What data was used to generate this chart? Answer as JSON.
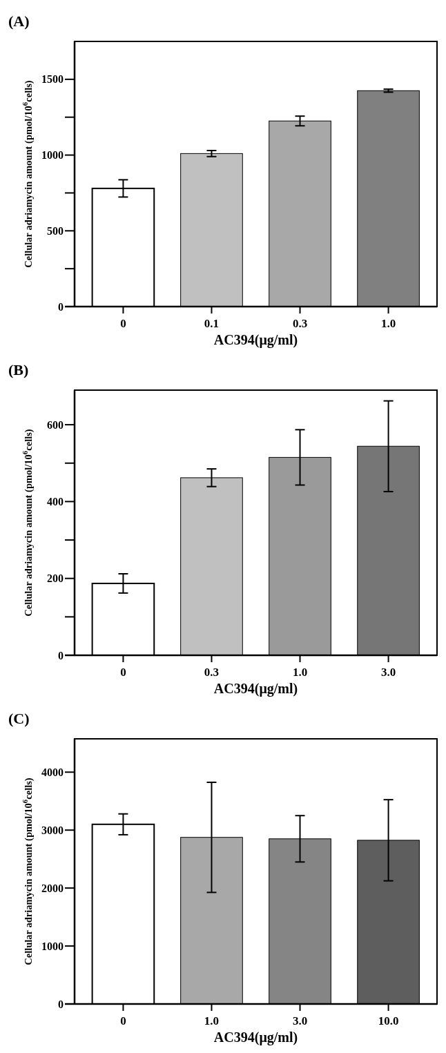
{
  "chart_data": [
    {
      "type": "bar",
      "title": "(A)",
      "xlabel": "AC394(μg/ml)",
      "ylabel": "Cellular adriamycin amount (pmol/10$^{6}$cells)",
      "categories": [
        "0",
        "0.1",
        "0.3",
        "1.0"
      ],
      "values": [
        780,
        1010,
        1225,
        1425
      ],
      "errors": [
        57,
        20,
        32,
        10
      ],
      "colors": [
        "#ffffff",
        "#c0c0c0",
        "#a8a8a8",
        "#808080"
      ],
      "ylim": [
        0,
        1750
      ],
      "yticks": [
        0,
        {
          "value": 250,
          "label": null
        },
        500,
        {
          "value": 750,
          "label": null
        },
        1000,
        {
          "value": 1250,
          "label": null
        },
        1500
      ],
      "grid": false
    },
    {
      "type": "bar",
      "title": "(B)",
      "xlabel": "AC394(μg/ml)",
      "ylabel": "Cellular adriamycin amount (pmol/10$^{6}$cells)",
      "categories": [
        "0",
        "0.3",
        "1.0",
        "3.0"
      ],
      "values": [
        187,
        462,
        515,
        544
      ],
      "errors": [
        25,
        23,
        72,
        118
      ],
      "colors": [
        "#ffffff",
        "#c0c0c0",
        "#9a9a9a",
        "#767676"
      ],
      "ylim": [
        0,
        690
      ],
      "yticks": [
        0,
        {
          "value": 100,
          "label": null
        },
        200,
        {
          "value": 300,
          "label": null
        },
        400,
        {
          "value": 500,
          "label": null
        },
        600
      ],
      "grid": false
    },
    {
      "type": "bar",
      "title": "(C)",
      "xlabel": "AC394(μg/ml)",
      "ylabel": "Cellular adriamycin amount (pmol/10$^{6}$cells)",
      "categories": [
        "0",
        "1.0",
        "3.0",
        "10.0"
      ],
      "values": [
        3100,
        2875,
        2850,
        2825
      ],
      "errors": [
        180,
        950,
        400,
        700
      ],
      "colors": [
        "#ffffff",
        "#a8a8a8",
        "#858585",
        "#5e5e5e"
      ],
      "ylim": [
        0,
        4575
      ],
      "yticks": [
        0,
        1000,
        2000,
        3000,
        4000
      ],
      "grid": false
    }
  ]
}
